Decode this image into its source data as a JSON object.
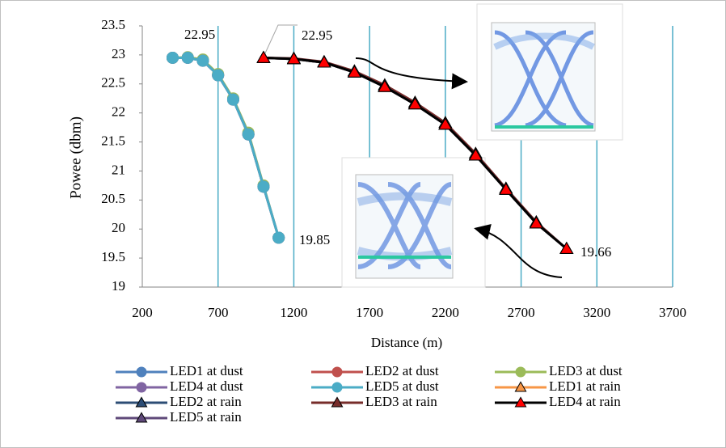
{
  "chart_data": {
    "type": "line",
    "xlabel": "Distance (m)",
    "ylabel": "Powee (dbm)",
    "xlim": [
      200,
      3700
    ],
    "xticks": [
      200,
      700,
      1200,
      1700,
      2200,
      2700,
      3200,
      3700
    ],
    "ylim": [
      19,
      23.5
    ],
    "yticks": [
      19,
      19.5,
      20,
      20.5,
      21,
      21.5,
      22,
      22.5,
      23,
      23.5
    ],
    "grid": "x",
    "grid_color": "#4bacc6",
    "series": [
      {
        "name": "LED1 at dust",
        "color": "#4f81bd",
        "marker": "circle",
        "x": [
          400,
          500,
          600,
          700,
          800,
          900,
          1000,
          1100
        ],
        "values": [
          22.95,
          22.95,
          22.9,
          22.65,
          22.23,
          21.63,
          20.73,
          19.85
        ]
      },
      {
        "name": "LED2 at dust",
        "color": "#c0504d",
        "marker": "circle",
        "x": [
          400,
          500,
          600,
          700,
          800,
          900,
          1000,
          1100
        ],
        "values": [
          22.95,
          22.95,
          22.9,
          22.65,
          22.23,
          21.63,
          20.73,
          19.85
        ]
      },
      {
        "name": "LED3 at dust",
        "color": "#9bbb59",
        "marker": "circle",
        "x": [
          400,
          500,
          600,
          700,
          800,
          900,
          1000,
          1100
        ],
        "values": [
          22.95,
          22.96,
          22.92,
          22.67,
          22.25,
          21.66,
          20.75,
          19.85
        ]
      },
      {
        "name": "LED4 at dust",
        "color": "#8064a2",
        "marker": "circle",
        "x": [
          400,
          500,
          600,
          700,
          800,
          900,
          1000,
          1100
        ],
        "values": [
          22.95,
          22.95,
          22.9,
          22.65,
          22.23,
          21.63,
          20.73,
          19.85
        ]
      },
      {
        "name": "LED5 at dust",
        "color": "#4bacc6",
        "marker": "circle",
        "x": [
          400,
          500,
          600,
          700,
          800,
          900,
          1000,
          1100
        ],
        "values": [
          22.95,
          22.95,
          22.9,
          22.65,
          22.23,
          21.63,
          20.73,
          19.85
        ]
      },
      {
        "name": "LED1 at rain",
        "color": "#f79646",
        "marker": "triangle",
        "x": [
          1000,
          1200,
          1400,
          1600,
          1800,
          2000,
          2200,
          2400,
          2600,
          2800,
          3000
        ],
        "values": [
          22.95,
          22.93,
          22.87,
          22.7,
          22.45,
          22.15,
          21.8,
          21.27,
          20.68,
          20.1,
          19.66
        ]
      },
      {
        "name": "LED2 at rain",
        "color": "#2c4d75",
        "marker": "triangle",
        "x": [
          1000,
          1200,
          1400,
          1600,
          1800,
          2000,
          2200,
          2400,
          2600,
          2800,
          3000
        ],
        "values": [
          22.95,
          22.93,
          22.87,
          22.7,
          22.45,
          22.15,
          21.8,
          21.27,
          20.68,
          20.1,
          19.66
        ]
      },
      {
        "name": "LED3 at rain",
        "color": "#772c2a",
        "marker": "triangle",
        "x": [
          1000,
          1200,
          1400,
          1600,
          1800,
          2000,
          2200,
          2400,
          2600,
          2800,
          3000
        ],
        "values": [
          22.95,
          22.94,
          22.88,
          22.72,
          22.48,
          22.18,
          21.83,
          21.3,
          20.7,
          20.12,
          19.66
        ]
      },
      {
        "name": "LED4 at rain",
        "color": "#000000",
        "marker_color": "#ff0000",
        "marker": "triangle",
        "x": [
          1000,
          1200,
          1400,
          1600,
          1800,
          2000,
          2200,
          2400,
          2600,
          2800,
          3000
        ],
        "values": [
          22.95,
          22.93,
          22.87,
          22.7,
          22.45,
          22.15,
          21.8,
          21.27,
          20.68,
          20.1,
          19.66
        ]
      },
      {
        "name": "LED5 at rain",
        "color": "#5f497a",
        "marker": "triangle",
        "x": [
          1000,
          1200,
          1400,
          1600,
          1800,
          2000,
          2200,
          2400,
          2600,
          2800,
          3000
        ],
        "values": [
          22.95,
          22.93,
          22.87,
          22.7,
          22.45,
          22.15,
          21.8,
          21.27,
          20.68,
          20.1,
          19.66
        ]
      }
    ]
  }
}
